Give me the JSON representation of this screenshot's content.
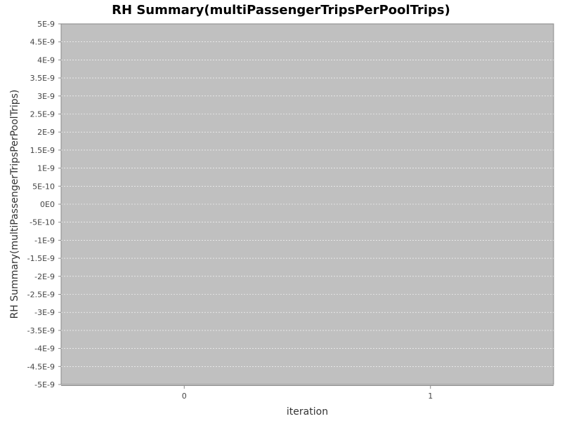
{
  "chart_data": {
    "type": "line",
    "title": "RH Summary(multiPassengerTripsPerPoolTrips)",
    "xlabel": "iteration",
    "ylabel": "RH Summary(multiPassengerTripsPerPoolTrips)",
    "categories": [
      "0",
      "1"
    ],
    "yticks": [
      "5E-9",
      "4.5E-9",
      "4E-9",
      "3.5E-9",
      "3E-9",
      "2.5E-9",
      "2E-9",
      "1.5E-9",
      "1E-9",
      "5E-10",
      "0E0",
      "-5E-10",
      "-1E-9",
      "-1.5E-9",
      "-2E-9",
      "-2.5E-9",
      "-3E-9",
      "-3.5E-9",
      "-4E-9",
      "-4.5E-9",
      "-5E-9"
    ],
    "ylim": [
      -5e-09,
      5e-09
    ],
    "series": [],
    "grid": true,
    "plot_background": "#c0c0c0",
    "gridline_color": "#ffffff"
  }
}
